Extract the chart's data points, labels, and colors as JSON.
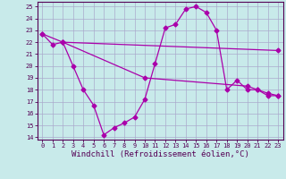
{
  "xlabel": "Windchill (Refroidissement éolien,°C)",
  "bg_color": "#c8eaea",
  "grid_color": "#aaaacc",
  "line_color": "#aa00aa",
  "xlim": [
    -0.5,
    23.5
  ],
  "ylim": [
    13.8,
    25.4
  ],
  "xticks": [
    0,
    1,
    2,
    3,
    4,
    5,
    6,
    7,
    8,
    9,
    10,
    11,
    12,
    13,
    14,
    15,
    16,
    17,
    18,
    19,
    20,
    21,
    22,
    23
  ],
  "yticks": [
    14,
    15,
    16,
    17,
    18,
    19,
    20,
    21,
    22,
    23,
    24,
    25
  ],
  "line1_x": [
    0,
    1,
    2,
    3,
    4,
    5,
    6,
    7,
    8,
    9,
    10,
    11,
    12,
    13,
    14,
    15,
    16,
    17,
    18,
    19,
    20,
    21,
    22,
    23
  ],
  "line1_y": [
    22.7,
    21.8,
    22.0,
    20.0,
    18.0,
    16.7,
    14.2,
    14.8,
    15.2,
    15.7,
    17.2,
    20.2,
    23.2,
    23.5,
    24.8,
    25.0,
    24.5,
    23.0,
    18.0,
    18.8,
    18.0,
    18.0,
    17.5,
    17.5
  ],
  "line2_x": [
    0,
    2,
    23
  ],
  "line2_y": [
    22.7,
    22.0,
    21.3
  ],
  "line3_x": [
    2,
    10,
    20,
    21,
    22,
    23
  ],
  "line3_y": [
    22.0,
    19.0,
    18.3,
    18.0,
    17.7,
    17.5
  ],
  "marker": "D",
  "markersize": 2.5,
  "linewidth": 0.9,
  "tick_fontsize": 5.0,
  "xlabel_fontsize": 6.5,
  "spine_color": "#550055",
  "tick_color": "#550055"
}
